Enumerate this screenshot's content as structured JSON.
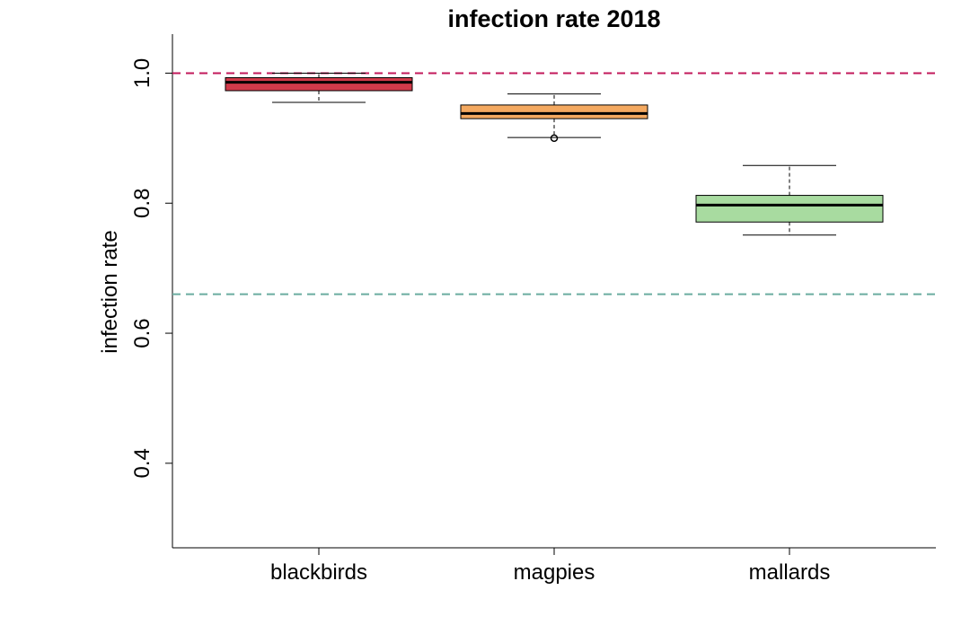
{
  "chart_data": {
    "type": "box",
    "title": "infection rate 2018",
    "xlabel": "",
    "ylabel": "infection rate",
    "ylim": [
      0.27,
      1.06
    ],
    "y_ticks": [
      0.4,
      0.6,
      0.8,
      1.0
    ],
    "y_tick_labels": [
      "0.4",
      "0.6",
      "0.8",
      "1.0"
    ],
    "categories": [
      "blackbirds",
      "magpies",
      "mallards"
    ],
    "boxes": [
      {
        "name": "blackbirds",
        "whisker_low": 0.955,
        "q1": 0.973,
        "median": 0.986,
        "q3": 0.993,
        "whisker_high": 1.0,
        "outliers": [],
        "color": "#d13a4a"
      },
      {
        "name": "magpies",
        "whisker_low": 0.901,
        "q1": 0.93,
        "median": 0.938,
        "q3": 0.951,
        "whisker_high": 0.968,
        "outliers": [
          0.9
        ],
        "color": "#f4a960"
      },
      {
        "name": "mallards",
        "whisker_low": 0.751,
        "q1": 0.771,
        "median": 0.797,
        "q3": 0.812,
        "whisker_high": 0.858,
        "outliers": [],
        "color": "#a8dba0"
      }
    ],
    "reference_lines": [
      {
        "y": 1.0,
        "color": "#c2185b",
        "style": "dashed"
      },
      {
        "y": 0.66,
        "color": "#6aaca0",
        "style": "dashed"
      }
    ],
    "grid": false,
    "legend": "none"
  }
}
